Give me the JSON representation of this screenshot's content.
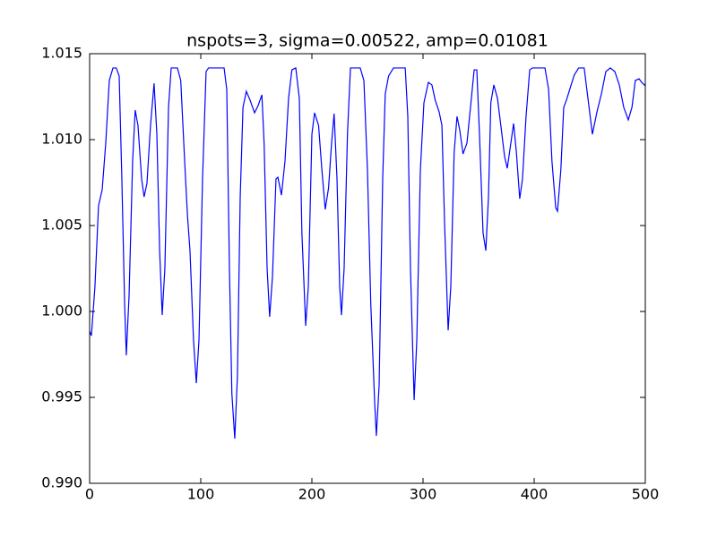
{
  "chart_data": {
    "type": "line",
    "title": "nspots=3, sigma=0.00522, amp=0.01081",
    "xlim": [
      0,
      500
    ],
    "xticks": [
      0,
      100,
      200,
      300,
      400,
      500
    ],
    "ylim": [
      0.99,
      1.015
    ],
    "yticks": [
      {
        "value": 0.99,
        "label": "0.990"
      },
      0.995,
      {
        "value": 1.0,
        "label": "1.000"
      },
      1.005,
      {
        "value": 1.01,
        "label": "1.010"
      },
      1.015
    ],
    "grid": false,
    "series": [
      {
        "color": "#0000ff",
        "x": [
          0,
          1.6,
          4.8,
          8,
          11.3,
          14.5,
          17.7,
          21,
          24,
          26.6,
          29,
          31.5,
          33,
          35.5,
          38.7,
          41,
          43.5,
          46.8,
          49,
          51.6,
          54.8,
          58,
          60.5,
          63,
          65.3,
          67.7,
          71,
          73.4,
          79,
          82,
          85.5,
          88,
          90.3,
          93.5,
          96,
          98.4,
          101.6,
          104.8,
          107,
          121,
          123.4,
          125.8,
          128,
          130.6,
          133,
          135.5,
          138,
          141,
          144.4,
          148.4,
          151.6,
          155,
          157,
          159.7,
          162,
          164.5,
          167.7,
          169.4,
          172.6,
          175.8,
          179,
          182,
          185.5,
          188.7,
          191,
          194.4,
          196.8,
          200,
          202.4,
          206,
          209,
          212,
          215,
          217.7,
          220,
          222.6,
          225,
          226.6,
          229,
          232,
          234.7,
          243.5,
          246.8,
          250,
          253,
          256.5,
          258,
          260.5,
          263.7,
          266,
          269,
          273.4,
          284,
          286.3,
          288.7,
          292,
          294.4,
          297.6,
          300.8,
          304.8,
          308,
          311,
          314.5,
          317,
          319.4,
          322.6,
          325,
          328,
          330.6,
          333,
          336,
          339.5,
          342.7,
          346,
          348.4,
          350.8,
          354,
          356.5,
          358.9,
          361,
          363.7,
          367,
          370,
          373.4,
          375.8,
          379,
          381.5,
          384,
          387,
          389.5,
          392.7,
          396,
          398.4,
          409.7,
          413,
          416,
          419.4,
          421,
          424,
          426.6,
          429,
          432,
          436,
          440,
          445,
          448.4,
          452.4,
          456.5,
          460.5,
          464.5,
          468.5,
          472.6,
          476.6,
          480.6,
          484.7,
          488,
          491,
          494.4,
          496.8,
          500
        ],
        "values": [
          0.99885,
          0.99859,
          1.00146,
          1.00615,
          1.00708,
          1.00979,
          1.01344,
          1.01417,
          1.01417,
          1.0137,
          1.00771,
          1.00042,
          0.99745,
          1.00094,
          1.00875,
          1.01172,
          1.01083,
          1.00771,
          1.00667,
          1.00745,
          1.01083,
          1.01328,
          1.01031,
          1.00354,
          0.99979,
          1.0025,
          1.01188,
          1.01417,
          1.01417,
          1.01344,
          1.00875,
          1.00563,
          1.00354,
          0.99833,
          0.99583,
          0.99833,
          1.00771,
          1.01396,
          1.01417,
          1.01417,
          1.01292,
          1.0025,
          0.99521,
          0.9926,
          0.99625,
          1.00667,
          1.01188,
          1.01281,
          1.01229,
          1.01156,
          1.01198,
          1.01261,
          1.00979,
          1.0025,
          0.99969,
          1.002,
          1.00771,
          1.00781,
          1.00677,
          1.00875,
          1.0124,
          1.01406,
          1.01417,
          1.0124,
          1.00458,
          0.99917,
          1.00146,
          1.01031,
          1.01156,
          1.01083,
          1.00823,
          1.00594,
          1.00719,
          1.00979,
          1.01151,
          1.00771,
          1.00146,
          0.99979,
          1.0025,
          1.01031,
          1.01417,
          1.01417,
          1.01344,
          1.00823,
          1.00042,
          0.99469,
          0.99276,
          0.99573,
          1.00771,
          1.01266,
          1.0137,
          1.01417,
          1.01417,
          1.01135,
          1.0025,
          0.99484,
          0.99833,
          1.00823,
          1.01214,
          1.01333,
          1.01318,
          1.01229,
          1.01161,
          1.01083,
          1.0051,
          0.9989,
          1.00146,
          1.00927,
          1.01135,
          1.01057,
          1.00917,
          1.00979,
          1.01188,
          1.01406,
          1.01406,
          1.01031,
          1.00458,
          1.00354,
          1.00667,
          1.01214,
          1.01318,
          1.0124,
          1.01083,
          1.00901,
          1.00833,
          1.00979,
          1.01094,
          1.00927,
          1.00656,
          1.00771,
          1.01135,
          1.01406,
          1.01417,
          1.01417,
          1.01292,
          1.00875,
          1.00604,
          1.00583,
          1.00823,
          1.01188,
          1.01229,
          1.01292,
          1.01375,
          1.01417,
          1.01417,
          1.0124,
          1.01031,
          1.01161,
          1.01266,
          1.01396,
          1.01417,
          1.01396,
          1.01318,
          1.01188,
          1.01115,
          1.01188,
          1.01344,
          1.01354,
          1.01333,
          1.01313
        ]
      }
    ]
  }
}
